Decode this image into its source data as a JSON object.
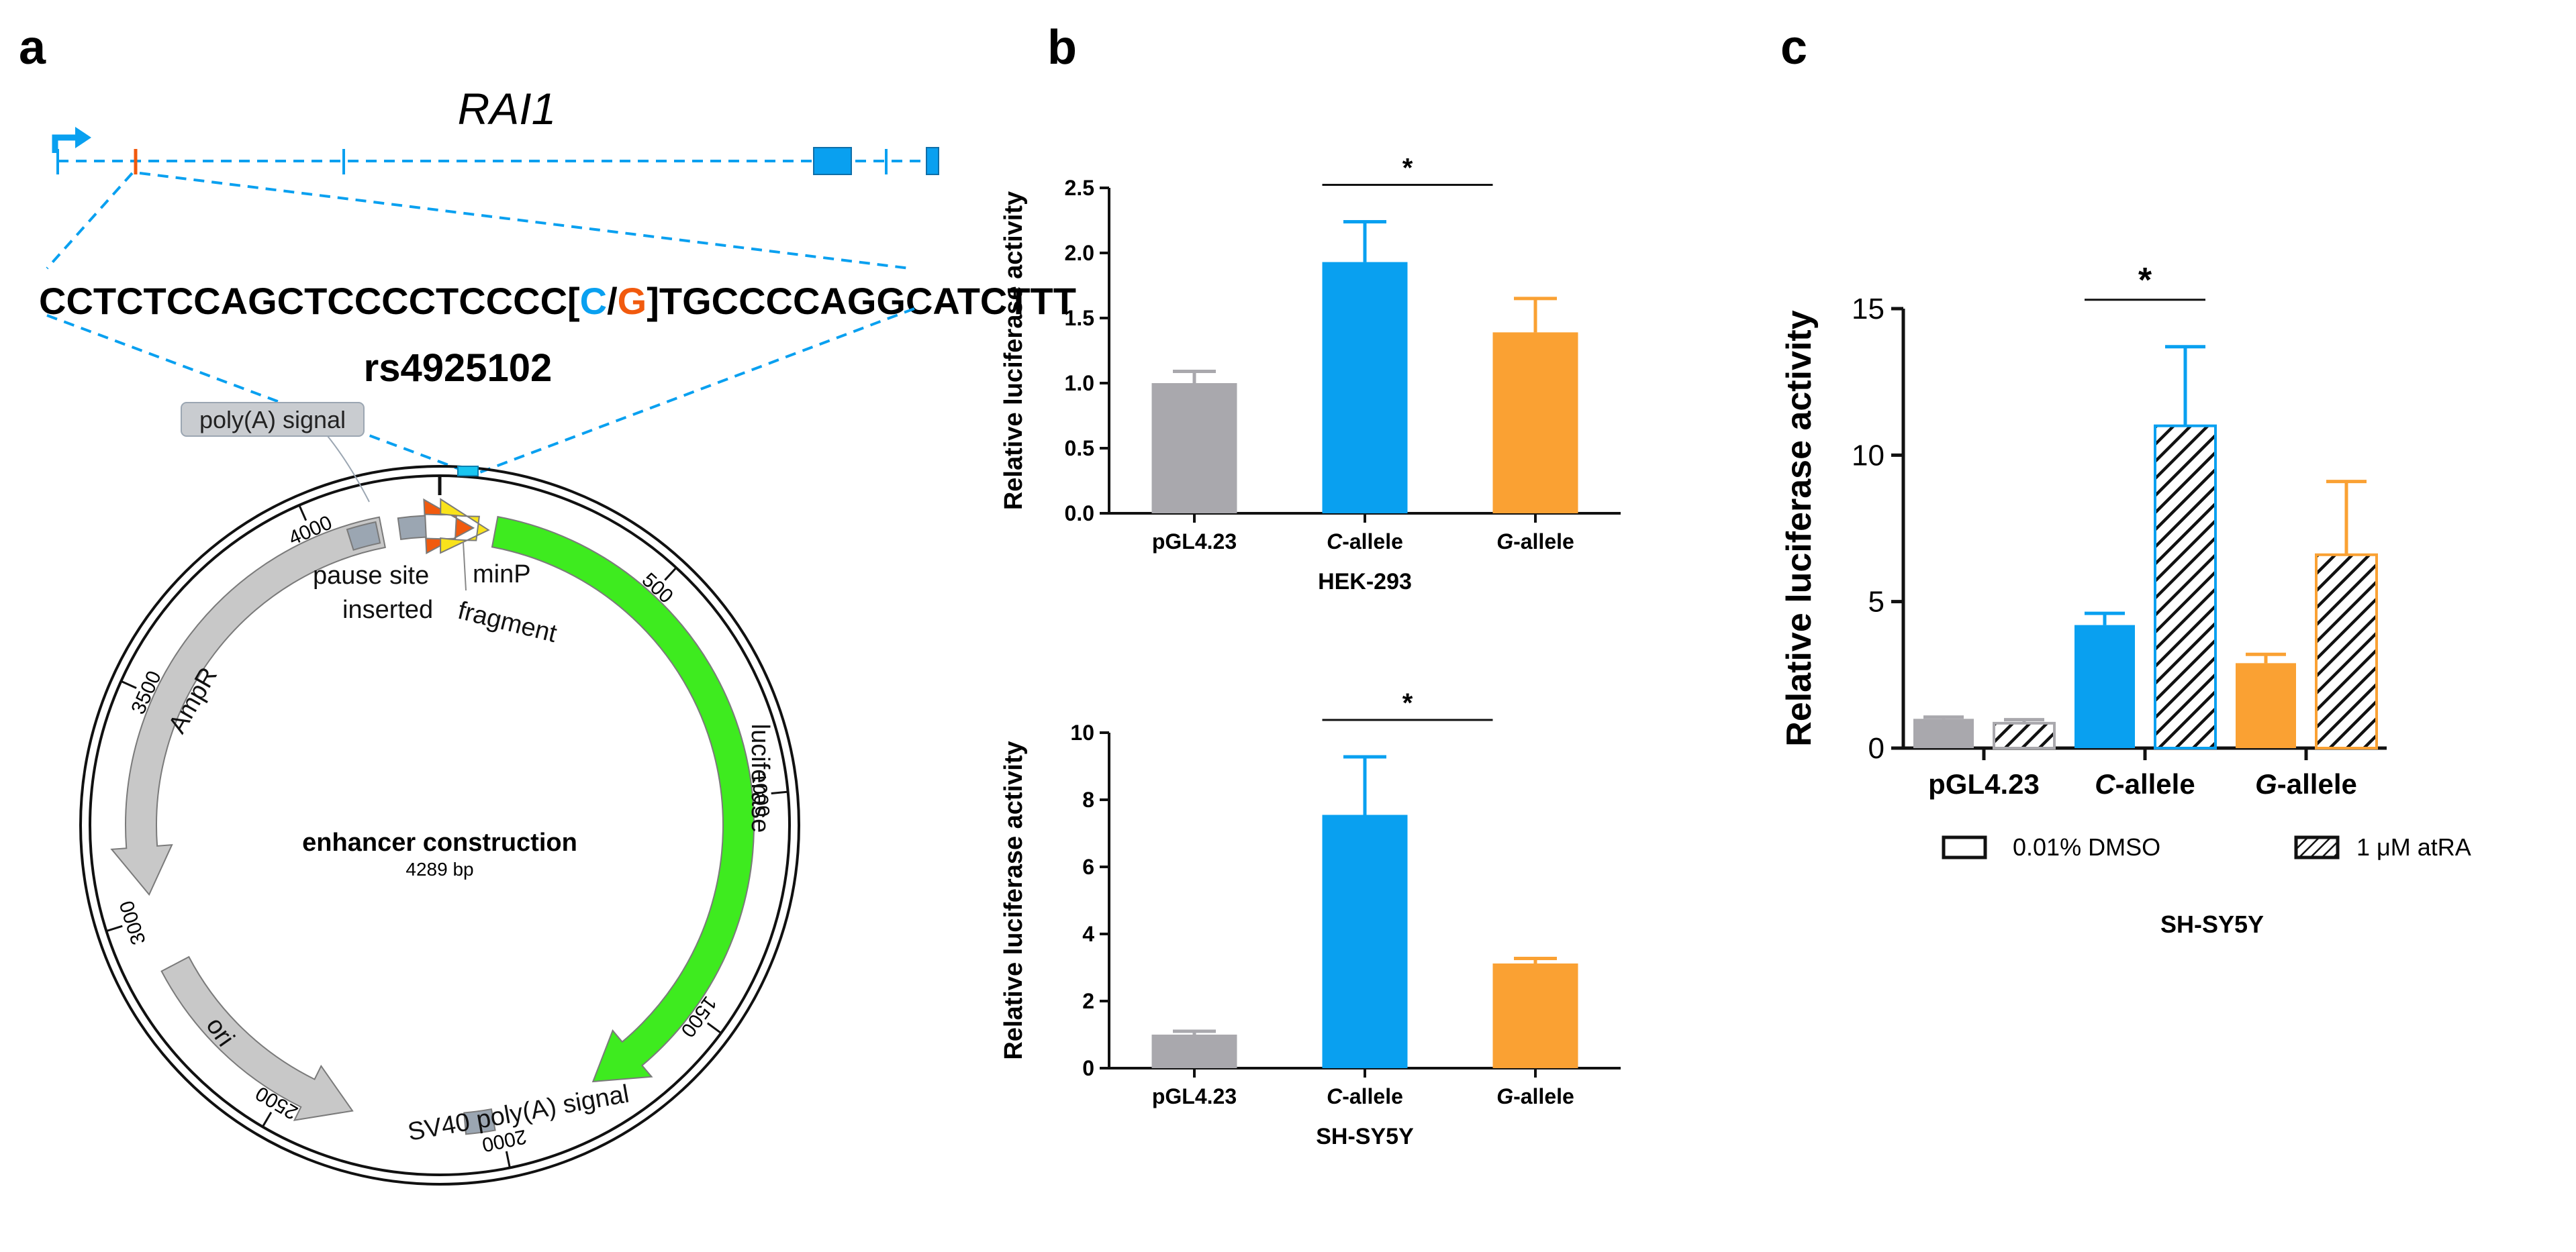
{
  "colors": {
    "blue": "#09A0F0",
    "orange": "#FAA133",
    "gray": "#A9A8AD",
    "green": "#3EEB1F",
    "map_gray": "#C8C8C8",
    "feature_gray": "#9BA6B2",
    "red_orange": "#F15A0E",
    "yellow": "#F9E31B",
    "dark_gray": "#808080"
  },
  "panel_a": {
    "label": "a",
    "gene": "RAI1",
    "seq_left": "CCTCTCCAGCTCCCCTCCCC[",
    "allele_c": "C",
    "slash": "/",
    "allele_g": "G",
    "seq_right": "]TGCCCCAGGCATCTTT",
    "snp_id": "rs4925102",
    "plasmid_name": "enhancer construction",
    "plasmid_size": "4289 bp",
    "features": {
      "polya": "poly(A) signal",
      "pause_line1": "pause site",
      "inserted_line1": "inserted",
      "fragment_line2": "fragment",
      "minp": "minP",
      "luciferase": "luciferase",
      "ampr": "AmpR",
      "ori": "ori",
      "sv40": "SV40 poly(A) signal"
    },
    "ticks": [
      "500",
      "1000",
      "1500",
      "2000",
      "2500",
      "3000",
      "3500",
      "4000"
    ]
  },
  "panel_b": {
    "label": "b",
    "ylabel": "Relative luciferase activity",
    "chart_data": [
      {
        "type": "bar",
        "title": "HEK-293",
        "categories": [
          "pGL4.23",
          "C-allele",
          "G-allele"
        ],
        "values": [
          1.0,
          1.93,
          1.39
        ],
        "errors": [
          0.09,
          0.31,
          0.26
        ],
        "ylabel": "Relative luciferase activity",
        "ylim": [
          0,
          2.5
        ],
        "yticks": [
          "0.0",
          "0.5",
          "1.0",
          "1.5",
          "2.0",
          "2.5"
        ],
        "significance": "*"
      },
      {
        "type": "bar",
        "title": "SH-SY5Y",
        "categories": [
          "pGL4.23",
          "C-allele",
          "G-allele"
        ],
        "values": [
          1.0,
          7.55,
          3.12
        ],
        "errors": [
          0.1,
          1.73,
          0.15
        ],
        "ylabel": "Relative luciferase activity",
        "ylim": [
          0,
          10
        ],
        "yticks": [
          "0",
          "2",
          "4",
          "6",
          "8",
          "10"
        ],
        "significance": "*"
      }
    ]
  },
  "panel_c": {
    "label": "c",
    "ylabel": "Relative luciferase activity",
    "chart_data": {
      "type": "bar",
      "title": "SH-SY5Y",
      "categories": [
        "pGL4.23",
        "C-allele",
        "G-allele"
      ],
      "series": [
        {
          "name": "0.01% DMSO",
          "values": [
            1.0,
            4.2,
            2.9
          ],
          "errors": [
            0.06,
            0.4,
            0.3
          ]
        },
        {
          "name": "1 μM atRA",
          "values": [
            0.85,
            11.0,
            6.6
          ],
          "errors": [
            0.12,
            2.7,
            2.5
          ]
        }
      ],
      "ylabel": "Relative luciferase activity",
      "ylim": [
        0,
        15
      ],
      "yticks": [
        "0",
        "5",
        "10",
        "15"
      ],
      "significance": "*"
    }
  }
}
